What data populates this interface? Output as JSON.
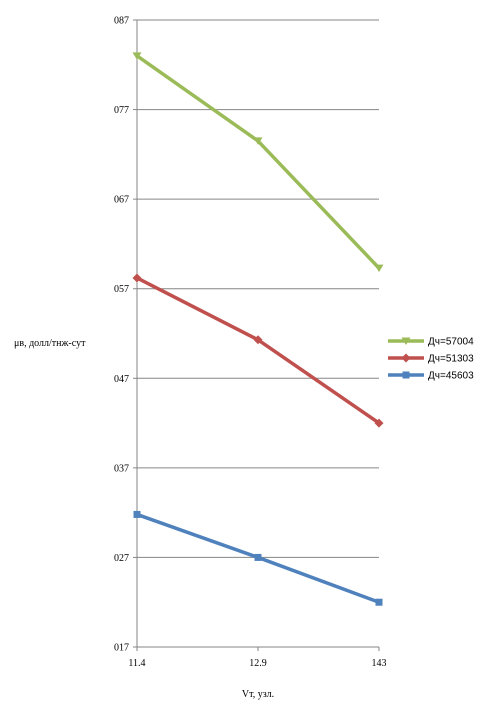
{
  "chart_data": {
    "type": "line",
    "x": [
      "11.4",
      "12.9",
      "143"
    ],
    "series": [
      {
        "name": "Дч=57004",
        "values": [
          0.83,
          0.735,
          0.593
        ],
        "color": "#9bbb59",
        "marker": "triangle"
      },
      {
        "name": "Дч=51303",
        "values": [
          0.582,
          0.513,
          0.42
        ],
        "color": "#c0504d",
        "marker": "diamond"
      },
      {
        "name": "Дч=45603",
        "values": [
          0.318,
          0.27,
          0.22
        ],
        "color": "#4f81bd",
        "marker": "square"
      }
    ],
    "ylabel": "μв, долл/тнж-сут",
    "xlabel": "Vт, узл.",
    "ylim": [
      0.17,
      0.87
    ],
    "yticks": [
      0.17,
      0.27,
      0.37,
      0.47,
      0.57,
      0.67,
      0.77,
      0.87
    ],
    "ytick_labels": [
      "017",
      "027",
      "037",
      "047",
      "057",
      "067",
      "077",
      "087"
    ],
    "grid": true,
    "legend_position": "right"
  }
}
